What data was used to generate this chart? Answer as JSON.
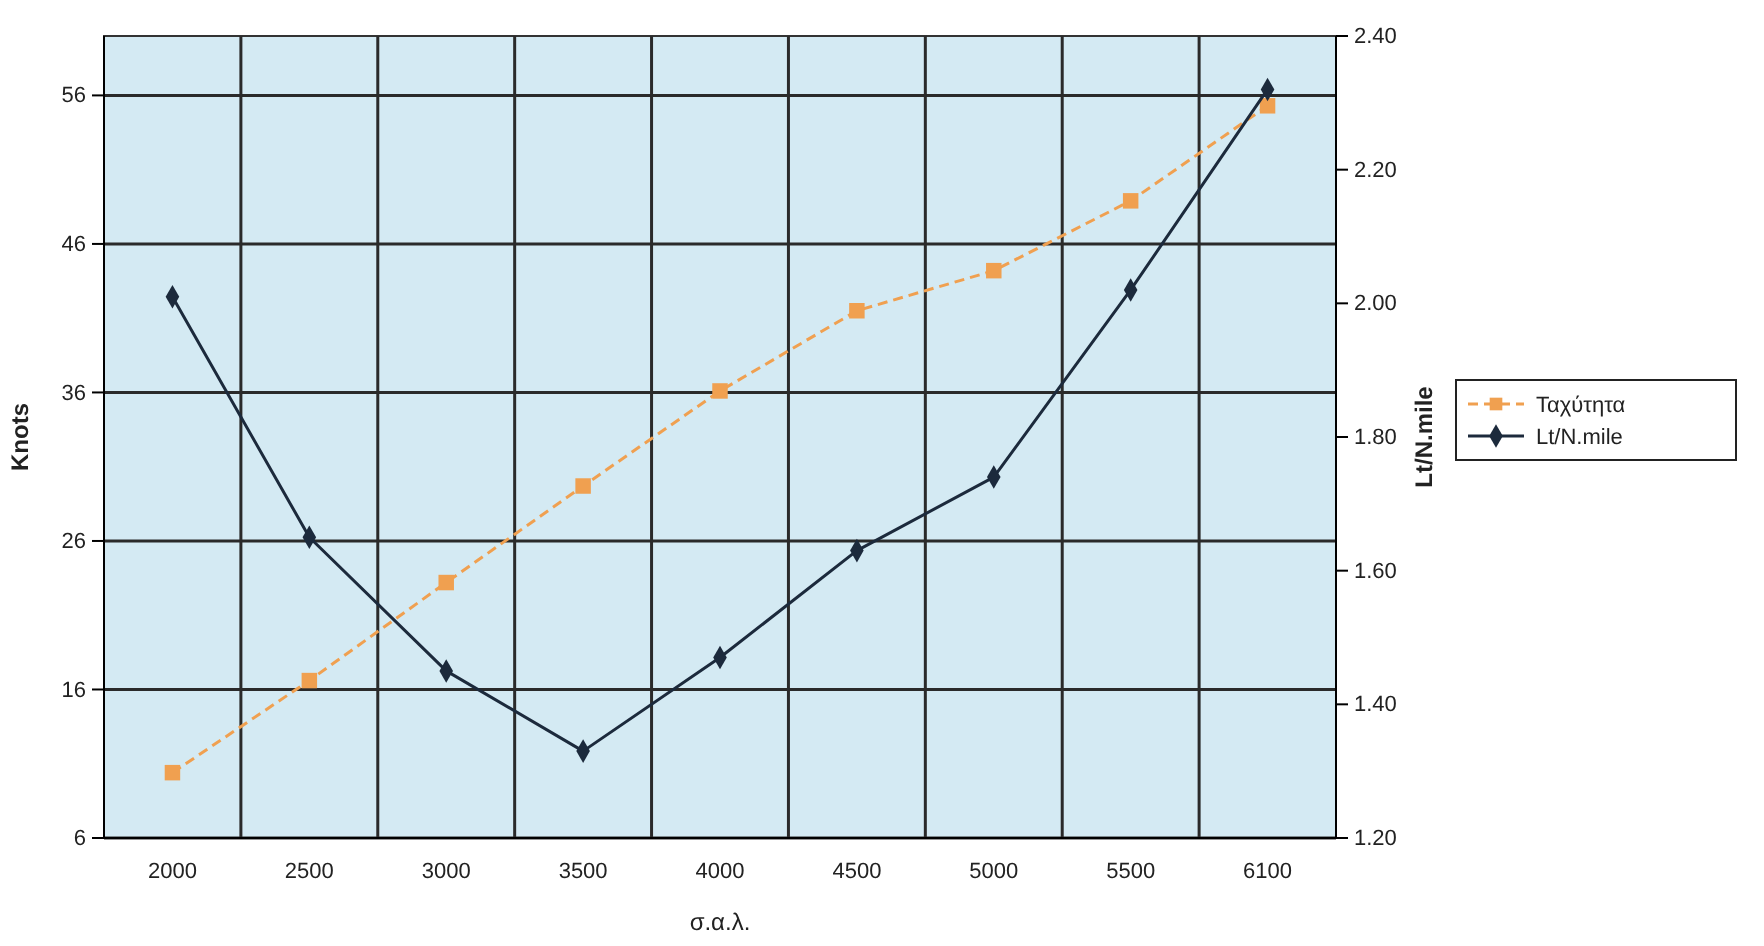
{
  "chart_data": {
    "type": "line",
    "xlabel": "σ.α.λ.",
    "ylabel": "Knots",
    "y2label": "Lt/N.mile",
    "categories": [
      "2000",
      "2500",
      "3000",
      "3500",
      "4000",
      "4500",
      "5000",
      "5500",
      "6100"
    ],
    "series": [
      {
        "name": "Ταχύτητα",
        "color": "#f0a050",
        "marker": "square",
        "line_style": "dashed",
        "values": [
          10.4,
          16.6,
          23.2,
          29.7,
          36.1,
          41.5,
          44.2,
          48.9,
          55.3
        ]
      },
      {
        "name": "Lt/N.mile",
        "color": "#1c2a3c",
        "marker": "diamond",
        "axis": "y2",
        "values": [
          2.01,
          1.65,
          1.45,
          1.33,
          1.47,
          1.63,
          1.74,
          2.02,
          2.32
        ]
      }
    ],
    "ylim": [
      6,
      60
    ],
    "yticks": [
      6,
      16,
      26,
      36,
      46,
      56
    ],
    "y2lim": [
      1.2,
      2.4
    ],
    "y2ticks": [
      {
        "value": 1.2,
        "label": "1.20"
      },
      {
        "value": 1.4,
        "label": "1.40"
      },
      {
        "value": 1.6,
        "label": "1.60"
      },
      {
        "value": 1.8,
        "label": "1.80"
      },
      {
        "value": 2.0,
        "label": "2.00"
      },
      {
        "value": 2.2,
        "label": "2.20"
      },
      {
        "value": 2.4,
        "label": "2.40"
      }
    ],
    "grid": true,
    "legend": "right"
  }
}
